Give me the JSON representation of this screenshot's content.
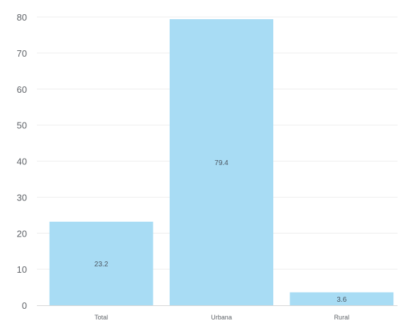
{
  "chart_data": {
    "type": "bar",
    "title": "",
    "xlabel": "",
    "ylabel": "",
    "categories": [
      "Total",
      "Urbana",
      "Rural"
    ],
    "values": [
      23.2,
      79.4,
      3.6
    ],
    "data_labels": [
      "23.2",
      "79.4",
      "3.6"
    ],
    "ylim": [
      0,
      80
    ],
    "yticks": [
      0,
      10,
      20,
      30,
      40,
      50,
      60,
      70,
      80
    ],
    "grid": true,
    "legend": "none",
    "bar_color": "#a8dcf4"
  }
}
